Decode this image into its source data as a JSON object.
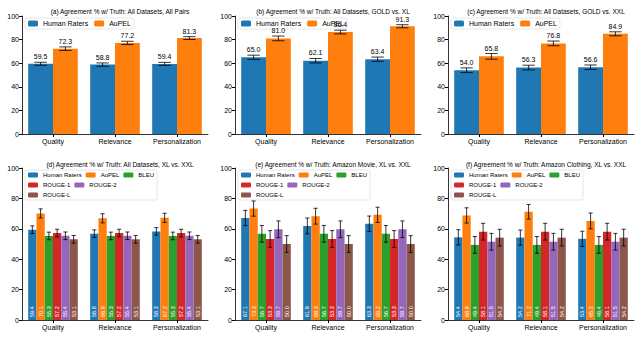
{
  "chart_data": [
    {
      "type": "bar",
      "title": "(a) Agreement % w/ Truth: All Datasets, All Pairs",
      "categories": [
        "Quality",
        "Relevance",
        "Personalization"
      ],
      "ylim": [
        0,
        100
      ],
      "yticks": [
        0,
        20,
        40,
        60,
        80,
        100
      ],
      "grid": false,
      "legend": "upper left",
      "data_labels": true,
      "series": [
        {
          "name": "Human Raters",
          "color": "#1f77b4",
          "values": [
            59.5,
            58.8,
            59.4
          ],
          "value_labels": [
            "59.5",
            "58.8",
            "59.4"
          ],
          "error": [
            1.3,
            1.4,
            1.3
          ]
        },
        {
          "name": "AuPEL",
          "color": "#ff7f0e",
          "values": [
            72.3,
            77.2,
            81.3
          ],
          "value_labels": [
            "72.3",
            "77.2",
            "81.3"
          ],
          "error": [
            1.5,
            1.4,
            1.2
          ]
        }
      ]
    },
    {
      "type": "bar",
      "title": "(b) Agreement % w/ Truth: All Datasets, GOLD vs. XL",
      "categories": [
        "Quality",
        "Relevance",
        "Personalization"
      ],
      "ylim": [
        0,
        100
      ],
      "yticks": [
        0,
        20,
        40,
        60,
        80,
        100
      ],
      "grid": false,
      "legend": "upper left",
      "data_labels": true,
      "series": [
        {
          "name": "Human Raters",
          "color": "#1f77b4",
          "values": [
            65.0,
            62.1,
            63.4
          ],
          "value_labels": [
            "65.0",
            "62.1",
            "63.4"
          ],
          "error": [
            1.8,
            1.9,
            1.8
          ]
        },
        {
          "name": "AuPEL",
          "color": "#ff7f0e",
          "values": [
            81.0,
            86.4,
            91.3
          ],
          "value_labels": [
            "81.0",
            "86.4",
            "91.3"
          ],
          "error": [
            2.0,
            1.6,
            1.3
          ]
        }
      ]
    },
    {
      "type": "bar",
      "title": "(c) Agreement % w/ Truth: All Datasets, GOLD vs. XXL",
      "categories": [
        "Quality",
        "Relevance",
        "Personalization"
      ],
      "ylim": [
        0,
        100
      ],
      "yticks": [
        0,
        20,
        40,
        60,
        80,
        100
      ],
      "grid": false,
      "legend": "upper left",
      "data_labels": true,
      "series": [
        {
          "name": "Human Raters",
          "color": "#1f77b4",
          "values": [
            54.0,
            56.3,
            56.6
          ],
          "value_labels": [
            "54.0",
            "56.3",
            "56.6"
          ],
          "error": [
            2.0,
            2.0,
            1.9
          ]
        },
        {
          "name": "AuPEL",
          "color": "#ff7f0e",
          "values": [
            65.8,
            76.8,
            84.9
          ],
          "value_labels": [
            "65.8",
            "76.8",
            "84.9"
          ],
          "error": [
            2.4,
            2.0,
            1.7
          ]
        }
      ]
    },
    {
      "type": "bar",
      "title": "(d) Agreement % w/ Truth: All Datasets, XL vs. XXL",
      "categories": [
        "Quality",
        "Relevance",
        "Personalization"
      ],
      "ylim": [
        0,
        100
      ],
      "yticks": [
        0,
        20,
        40,
        60,
        80,
        100
      ],
      "grid": false,
      "legend": "upper left",
      "data_labels": true,
      "series": [
        {
          "name": "Human Raters",
          "color": "#1f77b4",
          "values": [
            59.4,
            56.8,
            58.3
          ],
          "value_labels": [
            "59.4",
            "56.8",
            "58.3"
          ],
          "error": [
            2.5,
            2.5,
            2.5
          ]
        },
        {
          "name": "AuPEL",
          "color": "#ff7f0e",
          "values": [
            70.1,
            66.9,
            67.2
          ],
          "value_labels": [
            "70.1",
            "66.9",
            "67.2"
          ],
          "error": [
            3.0,
            3.0,
            3.0
          ]
        },
        {
          "name": "BLEU",
          "color": "#2ca02c",
          "values": [
            55.3,
            55.3,
            55.3
          ],
          "value_labels": [
            "55.3",
            "55.3",
            "55.3"
          ],
          "error": [
            2.5,
            2.5,
            2.5
          ]
        },
        {
          "name": "ROUGE-1",
          "color": "#d62728",
          "values": [
            57.2,
            57.2,
            57.2
          ],
          "value_labels": [
            "57.2",
            "57.2",
            "57.2"
          ],
          "error": [
            2.5,
            2.5,
            2.5
          ]
        },
        {
          "name": "ROUGE-2",
          "color": "#9467bd",
          "values": [
            55.4,
            55.4,
            55.4
          ],
          "value_labels": [
            "55.4",
            "55.4",
            "55.4"
          ],
          "error": [
            2.5,
            2.5,
            2.5
          ]
        },
        {
          "name": "ROUGE-L",
          "color": "#8c564b",
          "values": [
            53.1,
            53.1,
            53.1
          ],
          "value_labels": [
            "53.1",
            "53.1",
            "53.1"
          ],
          "error": [
            2.5,
            2.5,
            2.5
          ]
        }
      ]
    },
    {
      "type": "bar",
      "title": "(e) Agreement % w/ Truth: Amazon Movie, XL vs. XXL",
      "categories": [
        "Quality",
        "Relevance",
        "Personalization"
      ],
      "ylim": [
        0,
        100
      ],
      "yticks": [
        0,
        20,
        40,
        60,
        80,
        100
      ],
      "grid": false,
      "legend": "upper left",
      "data_labels": true,
      "series": [
        {
          "name": "Human Raters",
          "color": "#1f77b4",
          "values": [
            67.1,
            61.9,
            63.3
          ],
          "value_labels": [
            "67.1",
            "61.9",
            "63.3"
          ],
          "error": [
            5.0,
            5.2,
            5.1
          ]
        },
        {
          "name": "AuPEL",
          "color": "#ff7f0e",
          "values": [
            73.3,
            68.3,
            69.2
          ],
          "value_labels": [
            "73.3",
            "68.3",
            "69.2"
          ],
          "error": [
            5.0,
            5.2,
            5.0
          ]
        },
        {
          "name": "BLEU",
          "color": "#2ca02c",
          "values": [
            56.7,
            56.7,
            56.7
          ],
          "value_labels": [
            "56.7",
            "56.7",
            "56.7"
          ],
          "error": [
            5.5,
            5.5,
            5.5
          ]
        },
        {
          "name": "ROUGE-1",
          "color": "#d62728",
          "values": [
            53.3,
            53.3,
            53.3
          ],
          "value_labels": [
            "53.3",
            "53.3",
            "53.3"
          ],
          "error": [
            5.5,
            5.5,
            5.5
          ]
        },
        {
          "name": "ROUGE-2",
          "color": "#9467bd",
          "values": [
            59.7,
            59.7,
            59.7
          ],
          "value_labels": [
            "59.7",
            "59.7",
            "59.7"
          ],
          "error": [
            5.5,
            5.5,
            5.5
          ]
        },
        {
          "name": "ROUGE-L",
          "color": "#8c564b",
          "values": [
            50.0,
            50.0,
            50.0
          ],
          "value_labels": [
            "50.0",
            "50.0",
            "50.0"
          ],
          "error": [
            5.5,
            5.5,
            5.5
          ]
        }
      ]
    },
    {
      "type": "bar",
      "title": "(f) Agreement % w/ Truth: Amazon Clothing, XL vs. XXL",
      "categories": [
        "Quality",
        "Relevance",
        "Personalization"
      ],
      "ylim": [
        0,
        100
      ],
      "yticks": [
        0,
        20,
        40,
        60,
        80,
        100
      ],
      "grid": false,
      "legend": "upper left",
      "data_labels": true,
      "series": [
        {
          "name": "Human Raters",
          "color": "#1f77b4",
          "values": [
            54.4,
            54.2,
            53.4
          ],
          "value_labels": [
            "54.4",
            "54.2",
            "53.4"
          ],
          "error": [
            5.0,
            5.0,
            5.0
          ]
        },
        {
          "name": "AuPEL",
          "color": "#ff7f0e",
          "values": [
            68.8,
            71.2,
            65.2
          ],
          "value_labels": [
            "68.8",
            "71.2",
            "65.2"
          ],
          "error": [
            5.0,
            4.8,
            5.2
          ]
        },
        {
          "name": "BLEU",
          "color": "#2ca02c",
          "values": [
            49.4,
            49.4,
            49.4
          ],
          "value_labels": [
            "49.4",
            "49.4",
            "49.4"
          ],
          "error": [
            5.5,
            5.5,
            5.5
          ]
        },
        {
          "name": "ROUGE-1",
          "color": "#d62728",
          "values": [
            58.1,
            58.1,
            58.1
          ],
          "value_labels": [
            "58.1",
            "58.1",
            "58.1"
          ],
          "error": [
            5.5,
            5.5,
            5.5
          ]
        },
        {
          "name": "ROUGE-2",
          "color": "#9467bd",
          "values": [
            51.5,
            51.5,
            51.5
          ],
          "value_labels": [
            "51.5",
            "51.5",
            "51.5"
          ],
          "error": [
            5.5,
            5.5,
            5.5
          ]
        },
        {
          "name": "ROUGE-L",
          "color": "#8c564b",
          "values": [
            54.2,
            54.2,
            54.2
          ],
          "value_labels": [
            "54.2",
            "54.2",
            "54.2"
          ],
          "error": [
            5.5,
            5.5,
            5.5
          ]
        }
      ]
    }
  ]
}
